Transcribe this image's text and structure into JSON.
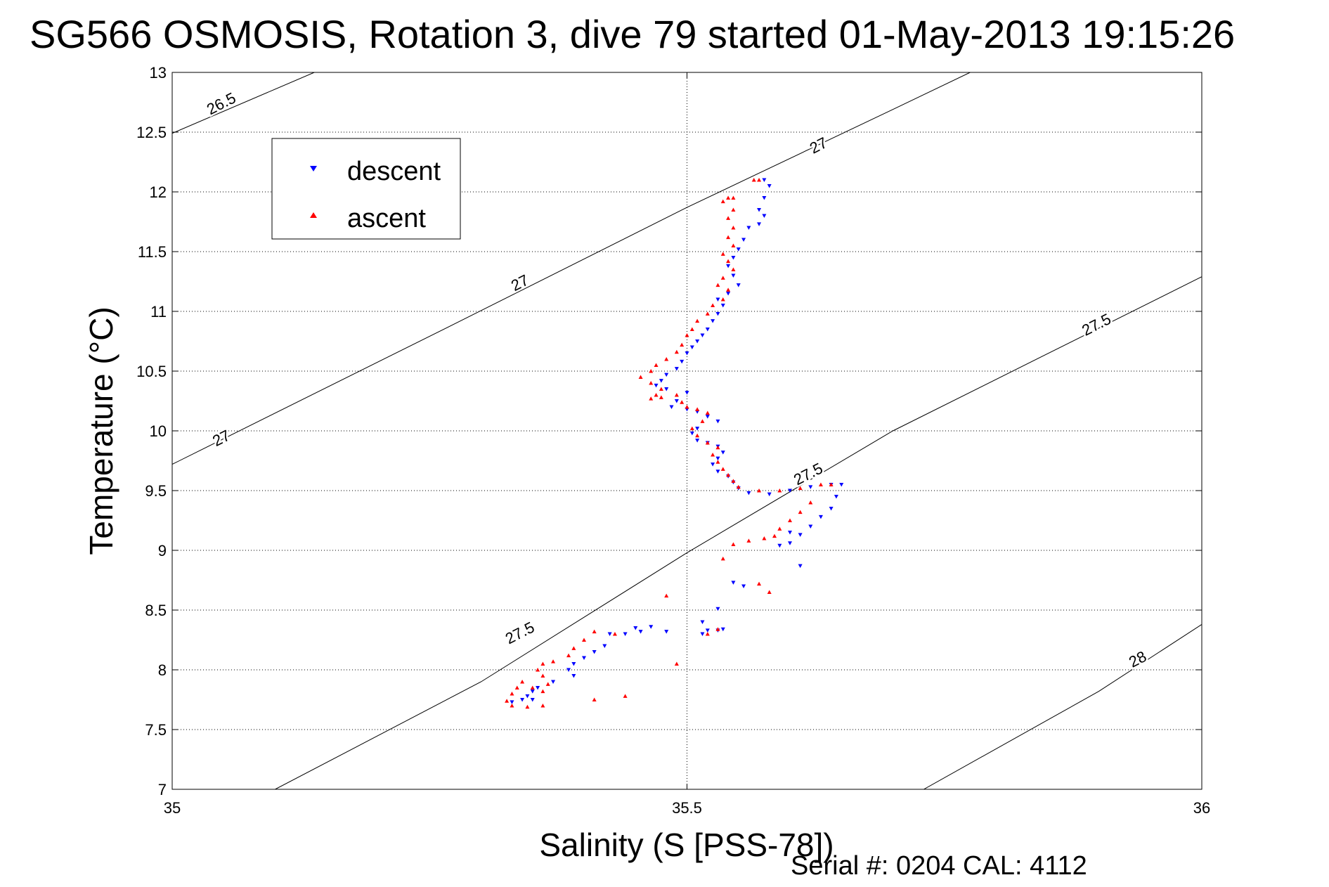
{
  "chart_data": {
    "type": "scatter",
    "title": "SG566 OSMOSIS, Rotation 3, dive 79 started 01-May-2013 19:15:26",
    "xlabel": "Salinity (S [PSS-78])",
    "ylabel": "Temperature (°C)",
    "xlim": [
      35,
      36
    ],
    "ylim": [
      7,
      13
    ],
    "x_ticks": [
      "35",
      "35.5",
      "36"
    ],
    "y_ticks": [
      "7",
      "7.5",
      "8",
      "8.5",
      "9",
      "9.5",
      "10",
      "10.5",
      "11",
      "11.5",
      "12",
      "12.5",
      "13"
    ],
    "grid": "dotted",
    "legend_position": "top-left",
    "density_isopycnals": [
      {
        "label": "26.5",
        "points": [
          [
            35.0,
            12.49
          ],
          [
            35.138,
            13.0
          ]
        ]
      },
      {
        "label": "27",
        "points": [
          [
            35.0,
            9.72
          ],
          [
            35.28,
            10.92
          ],
          [
            35.5,
            11.87
          ],
          [
            35.7,
            12.69
          ],
          [
            35.775,
            13.0
          ]
        ]
      },
      {
        "label": "27.5",
        "points": [
          [
            35.1,
            7.0
          ],
          [
            35.3,
            7.9
          ],
          [
            35.5,
            8.98
          ],
          [
            35.7,
            10.0
          ],
          [
            36.0,
            11.29
          ]
        ]
      },
      {
        "label": "28",
        "points": [
          [
            35.73,
            7.0
          ],
          [
            35.9,
            7.82
          ],
          [
            36.0,
            8.38
          ]
        ]
      }
    ],
    "contour_labels": [
      {
        "text": "26.5",
        "x": 35.05,
        "y": 12.7
      },
      {
        "text": "27",
        "x": 35.63,
        "y": 12.35
      },
      {
        "text": "27",
        "x": 35.34,
        "y": 11.2
      },
      {
        "text": "27",
        "x": 35.05,
        "y": 9.9
      },
      {
        "text": "27.5",
        "x": 35.9,
        "y": 10.85
      },
      {
        "text": "27.5",
        "x": 35.62,
        "y": 9.6
      },
      {
        "text": "27.5",
        "x": 35.34,
        "y": 8.27
      },
      {
        "text": "28",
        "x": 35.94,
        "y": 8.05
      }
    ],
    "series": [
      {
        "name": "descent",
        "color": "#0000ff",
        "marker": "triangle-down",
        "points": [
          [
            35.575,
            12.1
          ],
          [
            35.58,
            12.05
          ],
          [
            35.575,
            11.95
          ],
          [
            35.57,
            11.85
          ],
          [
            35.575,
            11.8
          ],
          [
            35.57,
            11.73
          ],
          [
            35.56,
            11.7
          ],
          [
            35.555,
            11.6
          ],
          [
            35.55,
            11.52
          ],
          [
            35.545,
            11.45
          ],
          [
            35.54,
            11.38
          ],
          [
            35.545,
            11.3
          ],
          [
            35.55,
            11.22
          ],
          [
            35.54,
            11.15
          ],
          [
            35.53,
            11.1
          ],
          [
            35.535,
            11.05
          ],
          [
            35.53,
            10.98
          ],
          [
            35.525,
            10.92
          ],
          [
            35.52,
            10.85
          ],
          [
            35.515,
            10.8
          ],
          [
            35.51,
            10.75
          ],
          [
            35.505,
            10.7
          ],
          [
            35.5,
            10.65
          ],
          [
            35.495,
            10.58
          ],
          [
            35.49,
            10.52
          ],
          [
            35.48,
            10.47
          ],
          [
            35.475,
            10.42
          ],
          [
            35.47,
            10.38
          ],
          [
            35.48,
            10.35
          ],
          [
            35.5,
            10.32
          ],
          [
            35.49,
            10.25
          ],
          [
            35.485,
            10.2
          ],
          [
            35.5,
            10.18
          ],
          [
            35.51,
            10.16
          ],
          [
            35.52,
            10.12
          ],
          [
            35.53,
            10.08
          ],
          [
            35.51,
            10.02
          ],
          [
            35.505,
            9.98
          ],
          [
            35.51,
            9.92
          ],
          [
            35.52,
            9.9
          ],
          [
            35.53,
            9.87
          ],
          [
            35.535,
            9.82
          ],
          [
            35.53,
            9.77
          ],
          [
            35.525,
            9.72
          ],
          [
            35.53,
            9.66
          ],
          [
            35.54,
            9.62
          ],
          [
            35.545,
            9.57
          ],
          [
            35.55,
            9.52
          ],
          [
            35.56,
            9.48
          ],
          [
            35.58,
            9.47
          ],
          [
            35.6,
            9.5
          ],
          [
            35.62,
            9.53
          ],
          [
            35.64,
            9.55
          ],
          [
            35.65,
            9.55
          ],
          [
            35.645,
            9.45
          ],
          [
            35.64,
            9.35
          ],
          [
            35.63,
            9.28
          ],
          [
            35.62,
            9.2
          ],
          [
            35.61,
            9.13
          ],
          [
            35.6,
            9.06
          ],
          [
            35.59,
            9.04
          ],
          [
            35.6,
            9.15
          ],
          [
            35.61,
            8.87
          ],
          [
            35.545,
            8.73
          ],
          [
            35.555,
            8.7
          ],
          [
            35.53,
            8.51
          ],
          [
            35.535,
            8.34
          ],
          [
            35.53,
            8.33
          ],
          [
            35.52,
            8.33
          ],
          [
            35.515,
            8.3
          ],
          [
            35.515,
            8.4
          ],
          [
            35.48,
            8.32
          ],
          [
            35.465,
            8.36
          ],
          [
            35.455,
            8.32
          ],
          [
            35.45,
            8.35
          ],
          [
            35.44,
            8.3
          ],
          [
            35.425,
            8.3
          ],
          [
            35.42,
            8.2
          ],
          [
            35.41,
            8.15
          ],
          [
            35.4,
            8.1
          ],
          [
            35.39,
            8.05
          ],
          [
            35.385,
            8.0
          ],
          [
            35.39,
            7.95
          ],
          [
            35.37,
            7.9
          ],
          [
            35.355,
            7.85
          ],
          [
            35.35,
            7.82
          ],
          [
            35.345,
            7.78
          ],
          [
            35.34,
            7.75
          ],
          [
            35.33,
            7.73
          ],
          [
            35.35,
            7.75
          ]
        ]
      },
      {
        "name": "ascent",
        "color": "#ff0000",
        "marker": "triangle-up",
        "points": [
          [
            35.57,
            12.1
          ],
          [
            35.565,
            12.1
          ],
          [
            35.545,
            11.95
          ],
          [
            35.54,
            11.95
          ],
          [
            35.535,
            11.92
          ],
          [
            35.545,
            11.85
          ],
          [
            35.54,
            11.78
          ],
          [
            35.545,
            11.7
          ],
          [
            35.54,
            11.62
          ],
          [
            35.545,
            11.55
          ],
          [
            35.535,
            11.48
          ],
          [
            35.54,
            11.42
          ],
          [
            35.545,
            11.35
          ],
          [
            35.535,
            11.28
          ],
          [
            35.53,
            11.22
          ],
          [
            35.54,
            11.18
          ],
          [
            35.535,
            11.1
          ],
          [
            35.525,
            11.05
          ],
          [
            35.52,
            10.98
          ],
          [
            35.51,
            10.92
          ],
          [
            35.505,
            10.85
          ],
          [
            35.5,
            10.8
          ],
          [
            35.495,
            10.72
          ],
          [
            35.49,
            10.66
          ],
          [
            35.48,
            10.6
          ],
          [
            35.47,
            10.55
          ],
          [
            35.465,
            10.5
          ],
          [
            35.455,
            10.45
          ],
          [
            35.465,
            10.4
          ],
          [
            35.475,
            10.35
          ],
          [
            35.47,
            10.3
          ],
          [
            35.465,
            10.27
          ],
          [
            35.475,
            10.28
          ],
          [
            35.49,
            10.3
          ],
          [
            35.495,
            10.24
          ],
          [
            35.5,
            10.2
          ],
          [
            35.51,
            10.18
          ],
          [
            35.52,
            10.15
          ],
          [
            35.515,
            10.08
          ],
          [
            35.505,
            10.02
          ],
          [
            35.51,
            9.96
          ],
          [
            35.52,
            9.9
          ],
          [
            35.53,
            9.86
          ],
          [
            35.525,
            9.8
          ],
          [
            35.53,
            9.74
          ],
          [
            35.535,
            9.68
          ],
          [
            35.54,
            9.63
          ],
          [
            35.545,
            9.58
          ],
          [
            35.55,
            9.53
          ],
          [
            35.57,
            9.5
          ],
          [
            35.59,
            9.5
          ],
          [
            35.61,
            9.52
          ],
          [
            35.63,
            9.55
          ],
          [
            35.64,
            9.55
          ],
          [
            35.62,
            9.4
          ],
          [
            35.61,
            9.32
          ],
          [
            35.6,
            9.25
          ],
          [
            35.59,
            9.18
          ],
          [
            35.585,
            9.12
          ],
          [
            35.575,
            9.1
          ],
          [
            35.56,
            9.08
          ],
          [
            35.545,
            9.05
          ],
          [
            35.535,
            8.93
          ],
          [
            35.58,
            8.65
          ],
          [
            35.57,
            8.72
          ],
          [
            35.48,
            8.62
          ],
          [
            35.53,
            8.34
          ],
          [
            35.52,
            8.3
          ],
          [
            35.43,
            8.3
          ],
          [
            35.41,
            8.32
          ],
          [
            35.4,
            8.25
          ],
          [
            35.39,
            8.18
          ],
          [
            35.385,
            8.12
          ],
          [
            35.37,
            8.07
          ],
          [
            35.36,
            8.05
          ],
          [
            35.355,
            8.0
          ],
          [
            35.36,
            7.95
          ],
          [
            35.365,
            7.88
          ],
          [
            35.36,
            7.82
          ],
          [
            35.35,
            7.85
          ],
          [
            35.34,
            7.9
          ],
          [
            35.335,
            7.85
          ],
          [
            35.33,
            7.8
          ],
          [
            35.325,
            7.74
          ],
          [
            35.33,
            7.7
          ],
          [
            35.345,
            7.69
          ],
          [
            35.36,
            7.7
          ],
          [
            35.41,
            7.75
          ],
          [
            35.44,
            7.78
          ],
          [
            35.49,
            8.05
          ]
        ]
      }
    ]
  },
  "legend": {
    "descent_label": "descent",
    "ascent_label": "ascent"
  },
  "footer": {
    "serial_text": "Serial #: 0204  CAL: 4112"
  },
  "colors": {
    "descent": "#0000ff",
    "ascent": "#ff0000",
    "axis": "#000000",
    "grid": "#000000",
    "background": "#ffffff"
  }
}
